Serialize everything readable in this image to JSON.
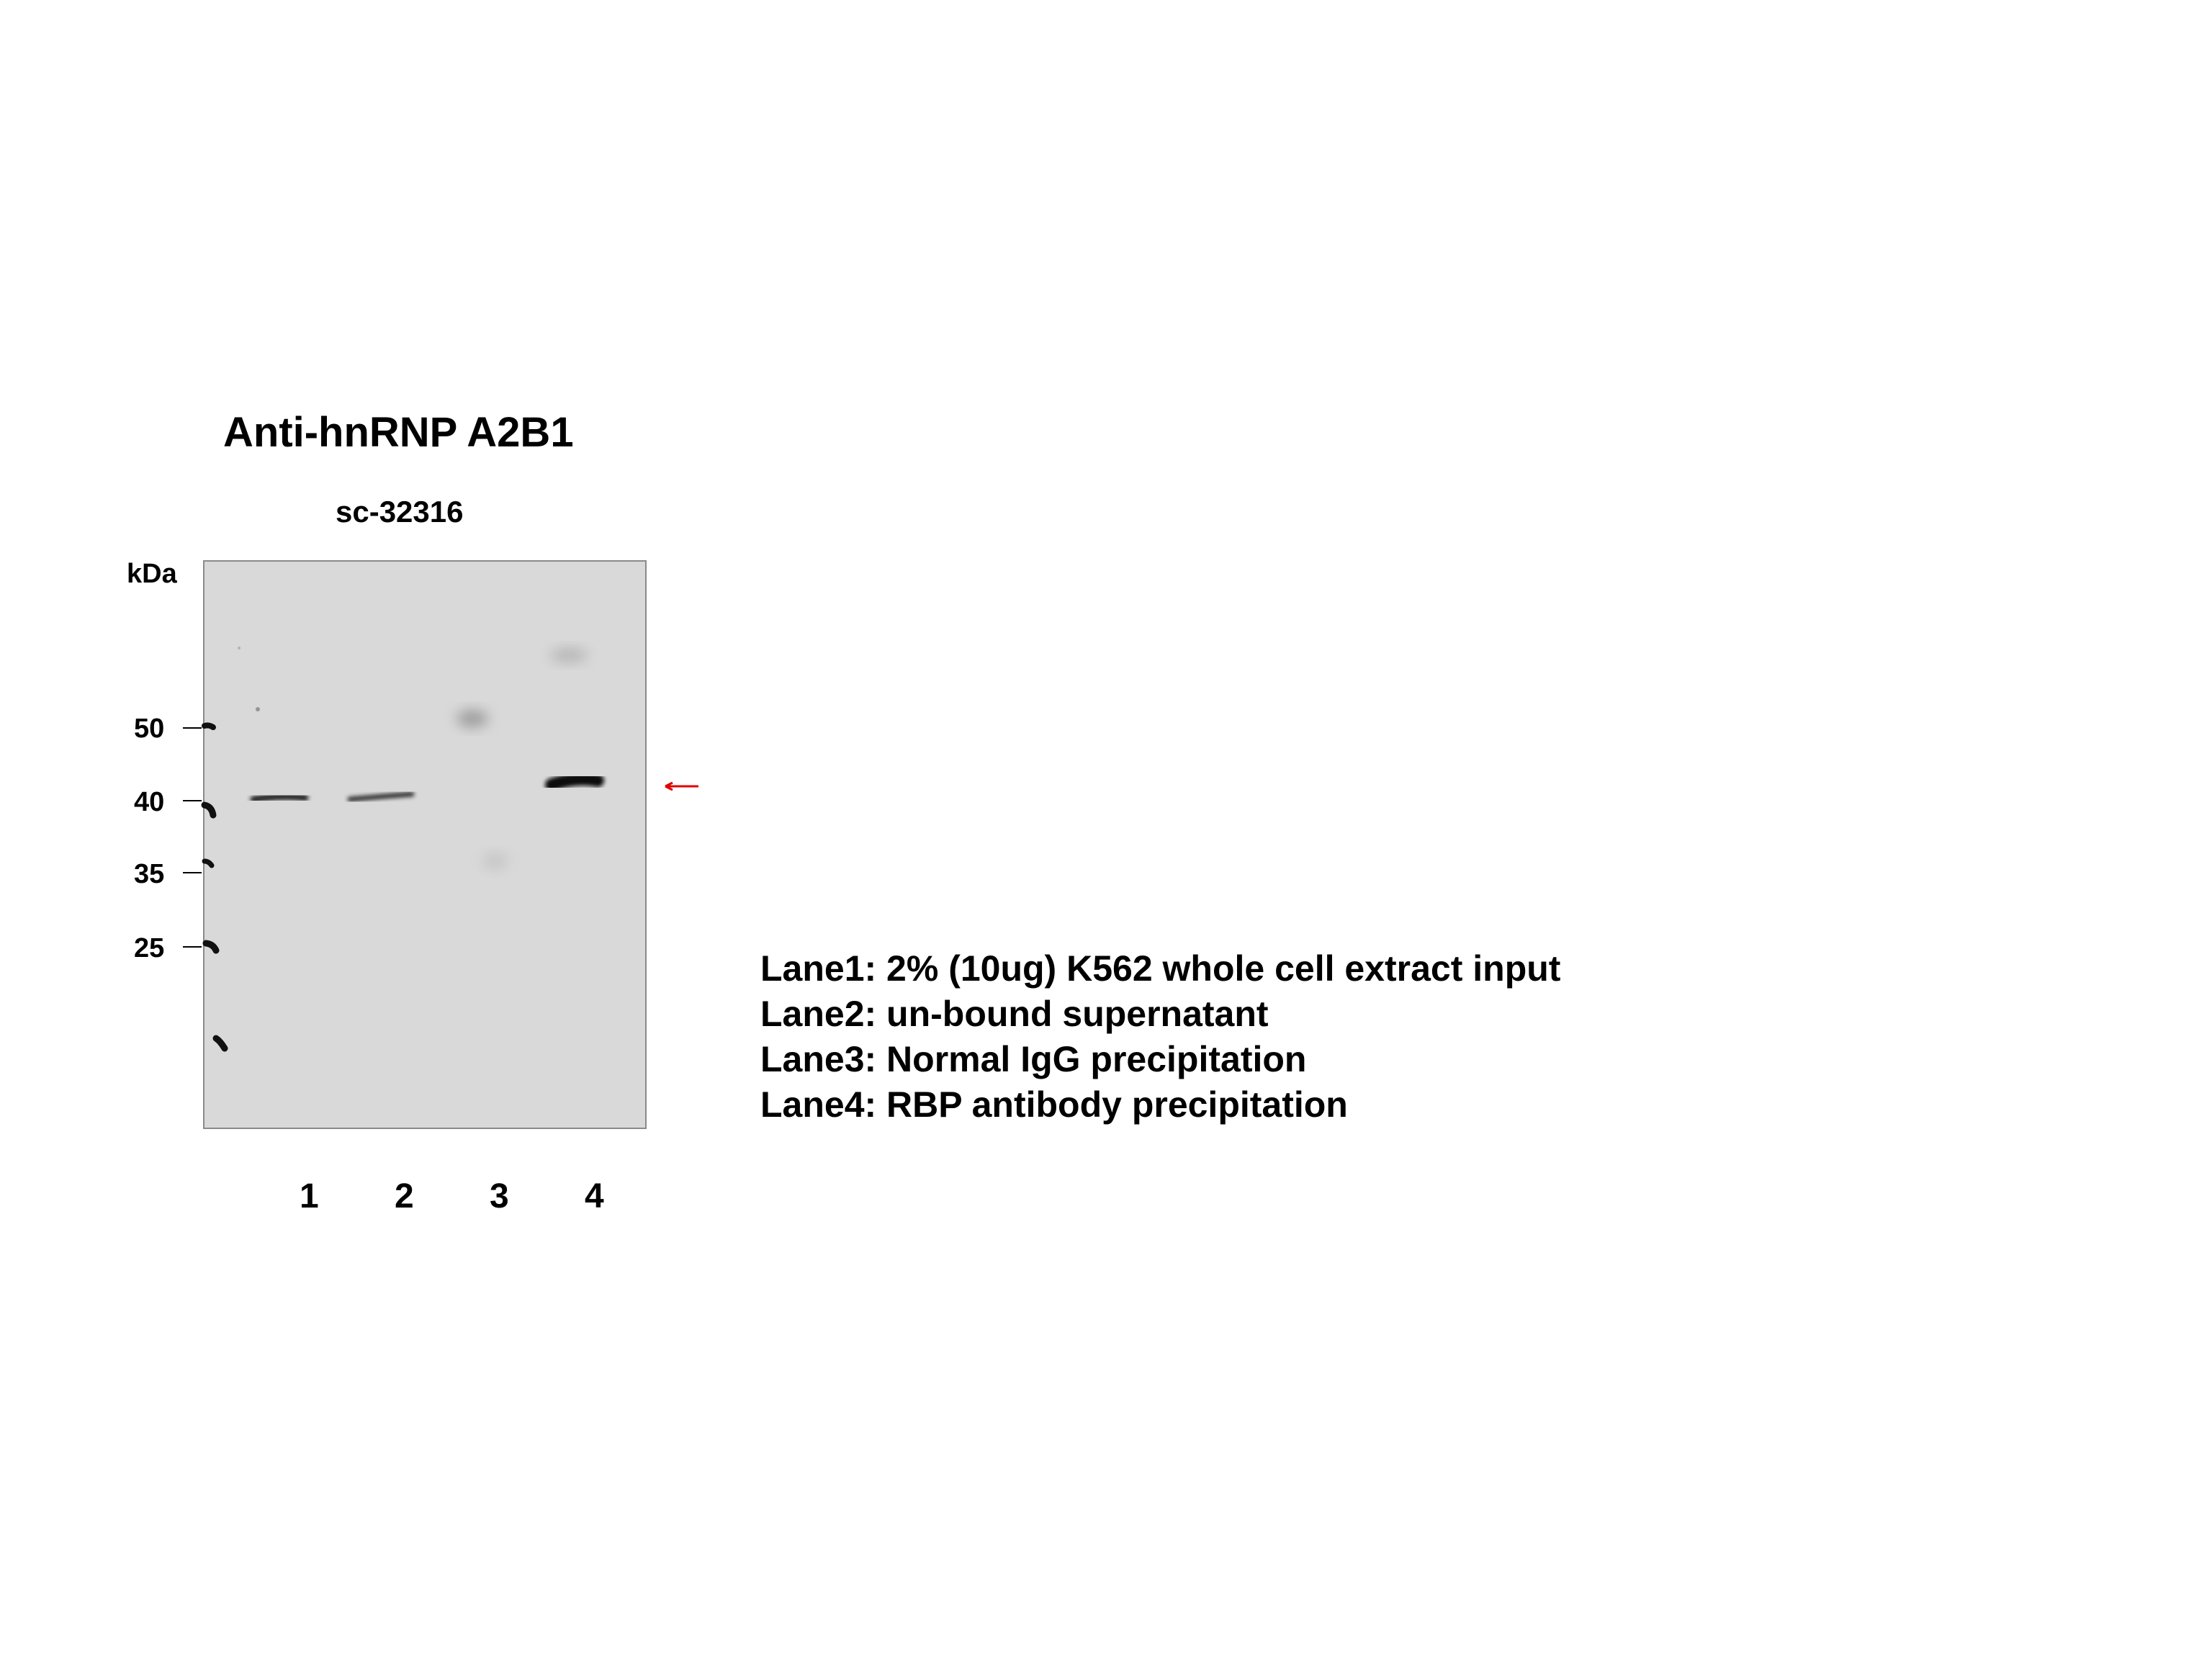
{
  "figure": {
    "title": "Anti-hnRNP A2B1",
    "catalog": "sc-32316",
    "unit_label": "kDa",
    "mw_markers": [
      {
        "label": "50"
      },
      {
        "label": "40"
      },
      {
        "label": "35"
      },
      {
        "label": "25"
      }
    ],
    "lanes": [
      {
        "label": "1"
      },
      {
        "label": "2"
      },
      {
        "label": "3"
      },
      {
        "label": "4"
      }
    ],
    "legend": [
      "Lane1: 2% (10ug) K562 whole cell extract input",
      "Lane2: un-bound supernatant",
      "Lane3: Normal IgG precipitation",
      "Lane4: RBP antibody precipitation"
    ],
    "colors": {
      "membrane": "#d9d9d9",
      "band": "#111111",
      "arrow": "#e00000"
    },
    "arrow_icon": "left-arrow-icon"
  }
}
